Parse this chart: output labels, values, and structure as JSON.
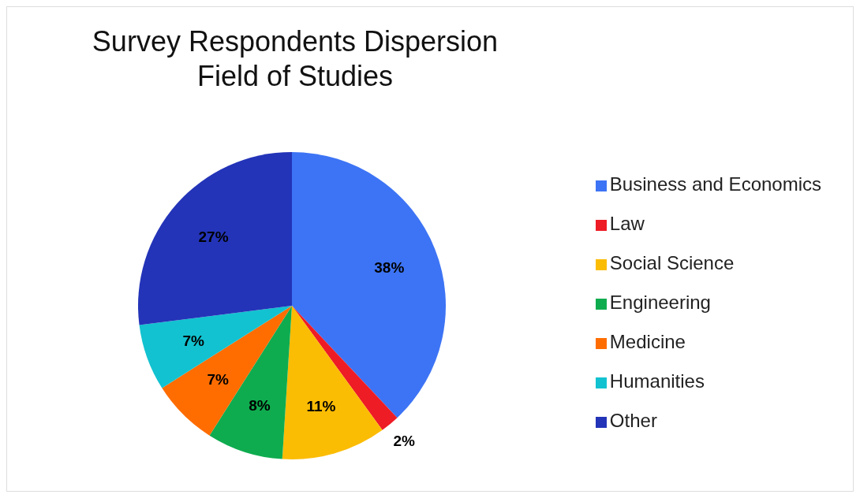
{
  "chart_data": {
    "type": "pie",
    "title": "Survey Respondents Dispersion",
    "subtitle": "Field of Studies",
    "categories": [
      "Business and Economics",
      "Law",
      "Social Science",
      "Engineering",
      "Medicine",
      "Humanities",
      "Other"
    ],
    "values": [
      38,
      2,
      11,
      8,
      7,
      7,
      27
    ],
    "value_labels": [
      "38%",
      "2%",
      "11%",
      "8%",
      "7%",
      "7%",
      "27%"
    ],
    "colors": [
      "#3d74f5",
      "#ee1c25",
      "#fbbc04",
      "#0fac4f",
      "#ff6d01",
      "#12c2d0",
      "#2334b8"
    ],
    "legend": "right"
  }
}
